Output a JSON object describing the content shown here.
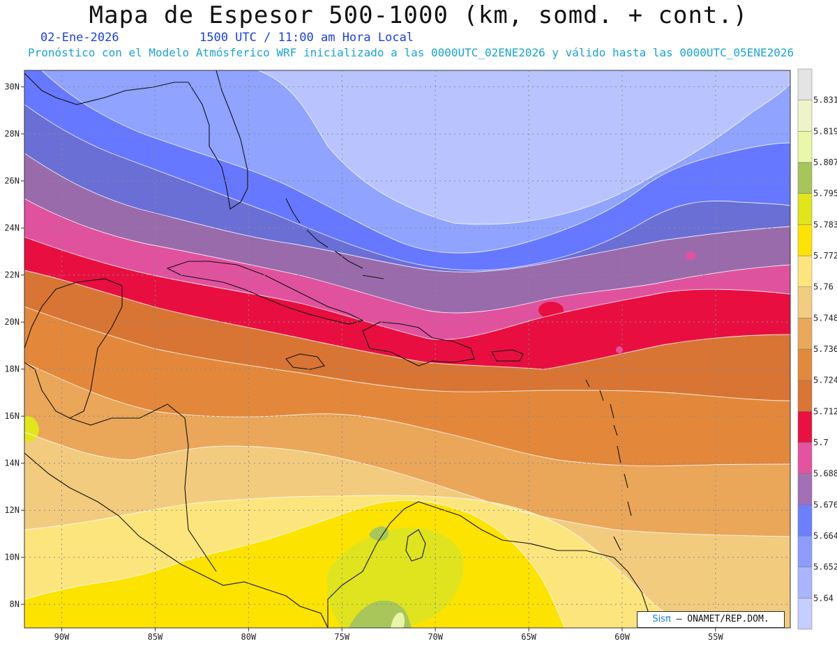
{
  "header": {
    "title": "Mapa de Espesor 500-1000 (km, somd. + cont.)",
    "date": "02-Ene-2026",
    "time": "1500 UTC / 11:00 am Hora Local",
    "forecast_line": "Pronóstico con el Modelo Atmósferico WRF inicializado a las 0000UTC_02ENE2026 y válido hasta las  0000UTC_05ENE2026"
  },
  "map": {
    "lon_labels": [
      "90W",
      "85W",
      "80W",
      "75W",
      "70W",
      "65W",
      "60W",
      "55W"
    ],
    "lat_labels": [
      "30N",
      "28N",
      "26N",
      "24N",
      "22N",
      "20N",
      "18N",
      "16N",
      "14N",
      "12N",
      "10N",
      "8N"
    ],
    "lon_range": [
      -92,
      -51
    ],
    "lat_range": [
      7,
      30.7
    ],
    "grid": "dotted",
    "credit": {
      "logo": "Sisπ",
      "text": "– ONAMET/REP.DOM."
    }
  },
  "colorbar": {
    "levels": [
      "5.64",
      "5.652",
      "5.664",
      "5.676",
      "5.688",
      "5.7",
      "5.712",
      "5.724",
      "5.736",
      "5.748",
      "5.76",
      "5.772",
      "5.783",
      "5.795",
      "5.807",
      "5.819",
      "5.831"
    ],
    "colors": [
      "#c6cdff",
      "#a9b6ff",
      "#8d9cff",
      "#6c80ff",
      "#a36fb5",
      "#e4539f",
      "#e8113f",
      "#d97535",
      "#e28a3c",
      "#eaa85b",
      "#f2cc80",
      "#fde57e",
      "#fde300",
      "#e0e61a",
      "#a6c65a",
      "#e9f7a8",
      "#eef4c8",
      "#e4e4e4"
    ]
  }
}
